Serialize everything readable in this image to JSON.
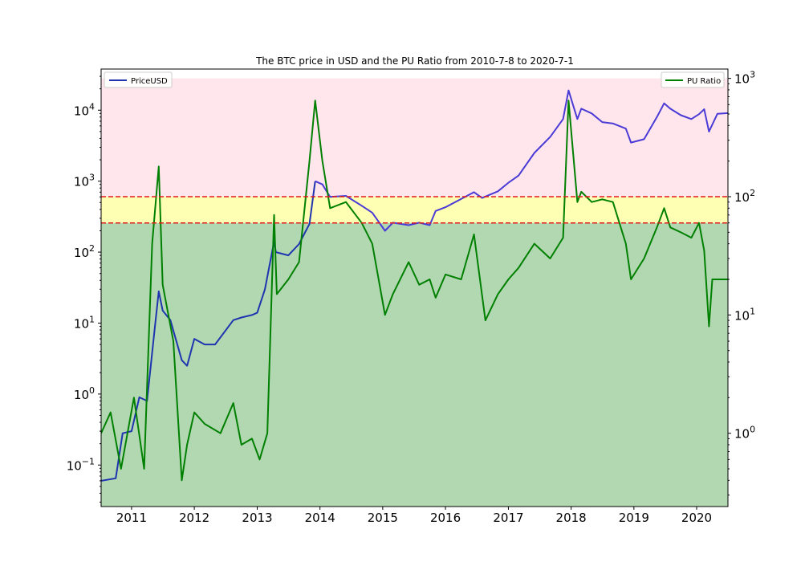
{
  "chart_data": {
    "type": "line",
    "title": "The BTC price in USD and the PU Ratio from 2010-7-8 to 2020-7-1",
    "xlim": [
      "2010-07-08",
      "2020-07-01"
    ],
    "x_ticks": [
      "2011",
      "2012",
      "2013",
      "2014",
      "2015",
      "2016",
      "2017",
      "2018",
      "2019",
      "2020"
    ],
    "left_axis": {
      "scale": "log",
      "ylim": [
        0.026,
        38000
      ],
      "ticks": [
        {
          "value": 0.1,
          "base": "10",
          "exp": "−1"
        },
        {
          "value": 1,
          "base": "10",
          "exp": "0"
        },
        {
          "value": 10,
          "base": "10",
          "exp": "1"
        },
        {
          "value": 100,
          "base": "10",
          "exp": "2"
        },
        {
          "value": 1000,
          "base": "10",
          "exp": "3"
        },
        {
          "value": 10000,
          "base": "10",
          "exp": "4"
        }
      ]
    },
    "right_axis": {
      "scale": "log",
      "ylim": [
        0.24,
        1200
      ],
      "ticks": [
        {
          "value": 1,
          "base": "10",
          "exp": "0"
        },
        {
          "value": 10,
          "base": "10",
          "exp": "1"
        },
        {
          "value": 100,
          "base": "10",
          "exp": "2"
        },
        {
          "value": 1000,
          "base": "10",
          "exp": "3"
        }
      ]
    },
    "zones": [
      {
        "axis": "right",
        "from": 0.24,
        "to": 60,
        "color": "#b2d8b2"
      },
      {
        "axis": "right",
        "from": 60,
        "to": 100,
        "color": "#ffffb3"
      },
      {
        "axis": "right",
        "from": 100,
        "to": 1000,
        "color": "#ffe6ec"
      }
    ],
    "thresholds": [
      {
        "axis": "right",
        "value": 60,
        "color": "#e41a1c"
      },
      {
        "axis": "right",
        "value": 100,
        "color": "#e41a1c"
      }
    ],
    "series": [
      {
        "name": "PriceUSD",
        "axis": "left",
        "color_below": "#1f35b0",
        "color_above": "#4a3bd6",
        "legend": "top-left",
        "x": [
          "2010-07-08",
          "2010-10-01",
          "2010-11-10",
          "2011-01-01",
          "2011-02-15",
          "2011-04-01",
          "2011-05-15",
          "2011-06-08",
          "2011-07-01",
          "2011-08-15",
          "2011-10-20",
          "2011-11-20",
          "2012-01-01",
          "2012-03-01",
          "2012-05-01",
          "2012-08-15",
          "2012-10-01",
          "2012-12-01",
          "2013-01-01",
          "2013-02-15",
          "2013-04-09",
          "2013-04-20",
          "2013-07-01",
          "2013-09-01",
          "2013-11-01",
          "2013-12-04",
          "2014-01-15",
          "2014-03-01",
          "2014-06-01",
          "2014-09-01",
          "2014-11-01",
          "2015-01-14",
          "2015-03-01",
          "2015-06-01",
          "2015-08-01",
          "2015-10-01",
          "2015-11-05",
          "2016-01-01",
          "2016-06-15",
          "2016-08-01",
          "2016-11-01",
          "2017-01-01",
          "2017-03-01",
          "2017-06-01",
          "2017-09-01",
          "2017-11-15",
          "2017-12-17",
          "2018-02-06",
          "2018-03-01",
          "2018-05-01",
          "2018-07-01",
          "2018-09-01",
          "2018-11-15",
          "2018-12-15",
          "2019-03-01",
          "2019-05-15",
          "2019-06-26",
          "2019-08-01",
          "2019-10-01",
          "2019-12-01",
          "2020-01-15",
          "2020-02-14",
          "2020-03-13",
          "2020-05-01",
          "2020-07-01"
        ],
        "y": [
          0.06,
          0.065,
          0.28,
          0.3,
          0.9,
          0.8,
          8,
          28,
          15,
          11,
          3,
          2.5,
          6,
          5,
          5,
          11,
          12,
          13,
          14,
          30,
          140,
          100,
          90,
          130,
          250,
          1000,
          900,
          600,
          620,
          450,
          360,
          200,
          260,
          240,
          260,
          240,
          380,
          430,
          700,
          580,
          720,
          950,
          1200,
          2500,
          4200,
          7500,
          19000,
          7500,
          10500,
          9000,
          6800,
          6500,
          5500,
          3500,
          3900,
          8000,
          12500,
          10500,
          8500,
          7500,
          8800,
          10300,
          5000,
          8900,
          9100
        ]
      },
      {
        "name": "PU Ratio",
        "axis": "right",
        "color": "#008000",
        "legend": "top-right",
        "x": [
          "2010-07-08",
          "2010-09-01",
          "2010-11-01",
          "2011-01-15",
          "2011-03-15",
          "2011-05-01",
          "2011-06-08",
          "2011-07-01",
          "2011-09-01",
          "2011-10-20",
          "2011-11-20",
          "2012-01-01",
          "2012-03-01",
          "2012-06-01",
          "2012-08-15",
          "2012-10-01",
          "2012-12-01",
          "2013-01-15",
          "2013-03-01",
          "2013-04-09",
          "2013-04-25",
          "2013-07-01",
          "2013-09-01",
          "2013-11-01",
          "2013-12-04",
          "2014-01-15",
          "2014-03-01",
          "2014-06-01",
          "2014-09-01",
          "2014-11-01",
          "2015-01-14",
          "2015-03-01",
          "2015-06-01",
          "2015-08-01",
          "2015-10-01",
          "2015-11-05",
          "2016-01-01",
          "2016-04-01",
          "2016-06-15",
          "2016-08-20",
          "2016-11-01",
          "2017-01-01",
          "2017-03-01",
          "2017-06-01",
          "2017-09-01",
          "2017-11-15",
          "2017-12-17",
          "2018-02-06",
          "2018-03-01",
          "2018-05-01",
          "2018-07-01",
          "2018-09-01",
          "2018-11-15",
          "2018-12-15",
          "2019-03-01",
          "2019-05-15",
          "2019-06-26",
          "2019-08-01",
          "2019-10-01",
          "2019-12-01",
          "2020-01-15",
          "2020-02-14",
          "2020-03-13",
          "2020-04-01",
          "2020-07-01"
        ],
        "y": [
          1,
          1.5,
          0.5,
          2,
          0.5,
          40,
          180,
          18,
          6,
          0.4,
          0.8,
          1.5,
          1.2,
          1,
          1.8,
          0.8,
          0.9,
          0.6,
          1,
          70,
          15,
          20,
          28,
          200,
          650,
          200,
          80,
          90,
          60,
          40,
          10,
          15,
          28,
          18,
          20,
          14,
          22,
          20,
          48,
          9,
          15,
          20,
          25,
          40,
          30,
          45,
          650,
          90,
          110,
          90,
          95,
          90,
          40,
          20,
          30,
          55,
          80,
          55,
          50,
          45,
          60,
          35,
          8,
          20,
          20
        ]
      }
    ]
  }
}
